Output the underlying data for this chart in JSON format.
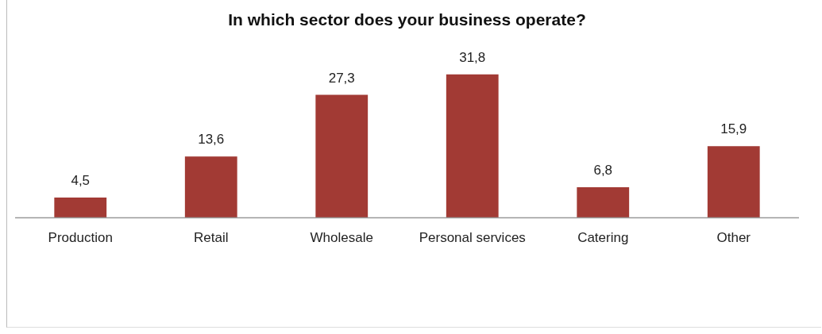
{
  "chart_data": {
    "type": "bar",
    "title": "In which sector does your business operate?",
    "categories": [
      "Production",
      "Retail",
      "Wholesale",
      "Personal services",
      "Catering",
      "Other"
    ],
    "values": [
      4.5,
      13.6,
      27.3,
      31.8,
      6.8,
      15.9
    ],
    "value_labels": [
      "4,5",
      "13,6",
      "27,3",
      "31,8",
      "6,8",
      "15,9"
    ],
    "color": "#a23a34",
    "grid": false,
    "legend": false
  }
}
